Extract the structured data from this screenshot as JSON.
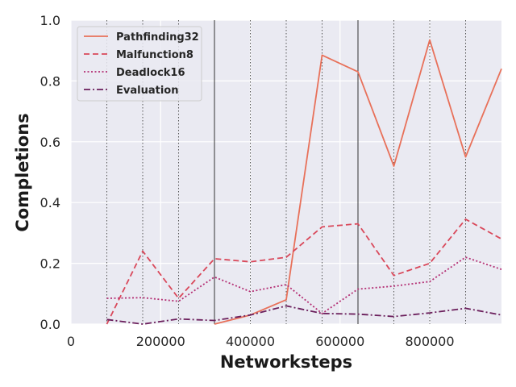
{
  "chart_data": {
    "type": "line",
    "xlabel": "Networksteps",
    "ylabel": "Completions",
    "xlim": [
      0,
      960000
    ],
    "ylim": [
      0,
      1.0
    ],
    "xticks": [
      0,
      200000,
      400000,
      600000,
      800000
    ],
    "xtick_labels": [
      "0",
      "200000",
      "400000",
      "600000",
      "800000"
    ],
    "yticks": [
      0,
      0.2,
      0.4,
      0.6,
      0.8,
      1.0
    ],
    "ytick_labels": [
      "0.0",
      "0.2",
      "0.4",
      "0.6",
      "0.8",
      "1.0"
    ],
    "grid": true,
    "legend_position": "top-left",
    "background_color": "#eaeaf2",
    "vlines": {
      "dotted": [
        80000,
        160000,
        240000,
        400000,
        480000,
        560000,
        720000,
        800000,
        880000
      ],
      "solid": [
        320000,
        640000
      ]
    },
    "x": [
      80000,
      160000,
      240000,
      320000,
      400000,
      480000,
      560000,
      640000,
      720000,
      800000,
      880000,
      960000
    ],
    "series": [
      {
        "name": "Pathfinding32",
        "color": "#e8715a",
        "dash": "solid",
        "values": [
          null,
          null,
          null,
          0.0,
          0.03,
          0.08,
          0.885,
          0.83,
          0.52,
          0.935,
          0.55,
          0.84
        ]
      },
      {
        "name": "Malfunction8",
        "color": "#d9485a",
        "dash": "dashed",
        "values": [
          0.0,
          0.24,
          0.085,
          0.215,
          0.205,
          0.22,
          0.32,
          0.33,
          0.16,
          0.2,
          0.345,
          0.28
        ]
      },
      {
        "name": "Deadlock16",
        "color": "#b42f74",
        "dash": "dotted",
        "values": [
          0.085,
          0.087,
          0.075,
          0.155,
          0.107,
          0.13,
          0.035,
          0.115,
          0.125,
          0.14,
          0.22,
          0.18
        ]
      },
      {
        "name": "Evaluation",
        "color": "#6b1f5c",
        "dash": "dashdot",
        "values": [
          0.015,
          0.0,
          0.017,
          0.012,
          0.03,
          0.06,
          0.035,
          0.033,
          0.025,
          0.037,
          0.052,
          0.03
        ]
      }
    ]
  }
}
